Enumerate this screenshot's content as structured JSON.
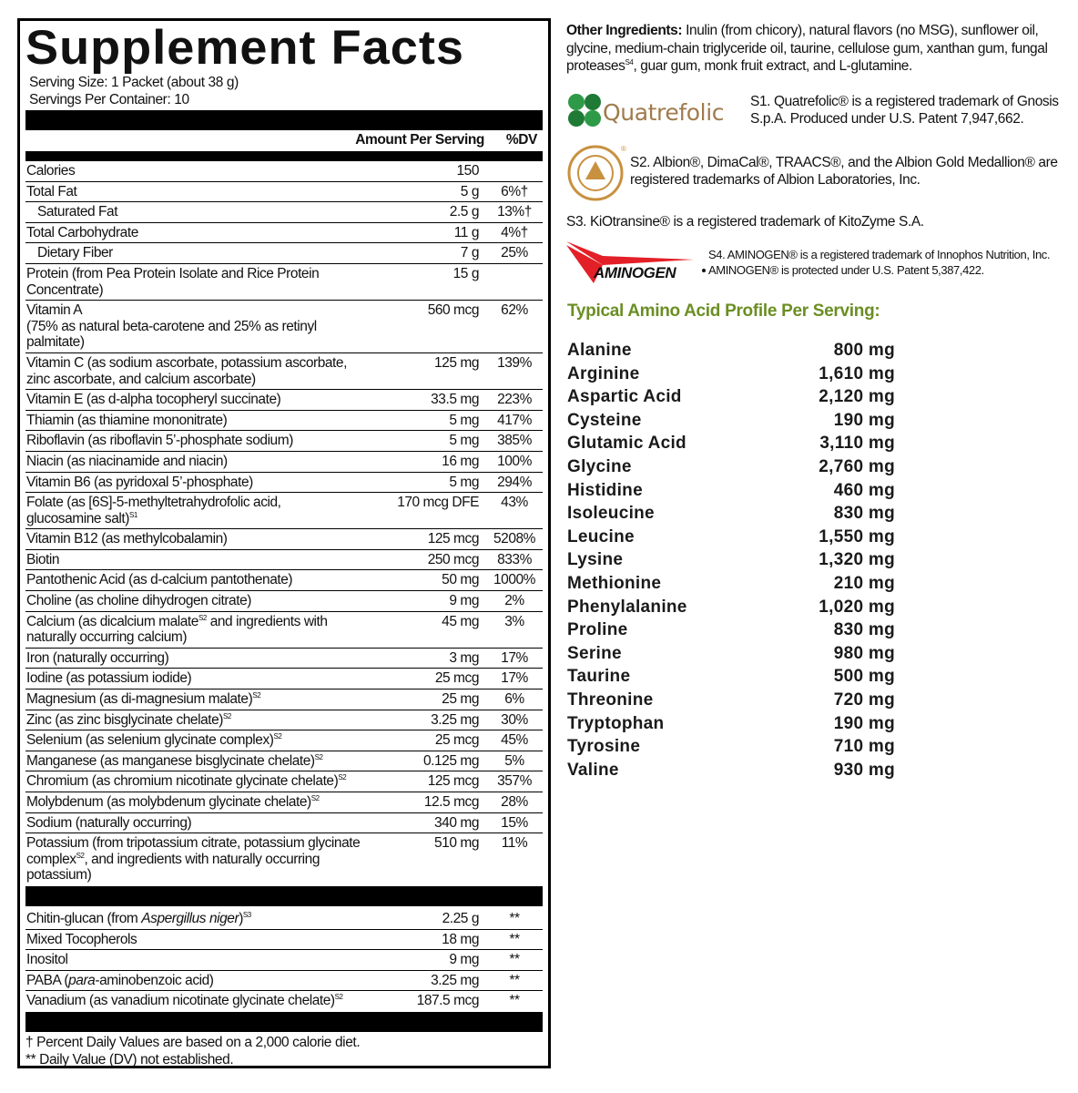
{
  "facts": {
    "title": "Supplement Facts",
    "serving_size": "Serving Size: 1 Packet (about 38 g)",
    "servings_per_container": "Servings Per Container: 10",
    "amount_header": "Amount Per Serving",
    "dv_header": "%DV",
    "rows": [
      {
        "name": [
          {
            "t": "Calories"
          }
        ],
        "amount": "150",
        "dv": ""
      },
      {
        "name": [
          {
            "t": "Total Fat"
          }
        ],
        "amount": "5 g",
        "dv": "6%†"
      },
      {
        "name": [
          {
            "t": "Saturated Fat"
          }
        ],
        "amount": "2.5 g",
        "dv": "13%†",
        "indent": true
      },
      {
        "name": [
          {
            "t": "Total Carbohydrate"
          }
        ],
        "amount": "11 g",
        "dv": "4%†"
      },
      {
        "name": [
          {
            "t": "Dietary Fiber"
          }
        ],
        "amount": "7 g",
        "dv": "25%",
        "indent": true
      },
      {
        "name": [
          {
            "t": "Protein (from Pea Protein Isolate and Rice Protein Concentrate)"
          }
        ],
        "amount": "15 g",
        "dv": ""
      },
      {
        "name": [
          {
            "t": "Vitamin A"
          },
          {
            "br": true
          },
          {
            "t": "(75% as natural beta-carotene and 25% as retinyl palmitate)"
          }
        ],
        "amount": "560 mcg",
        "dv": "62%"
      },
      {
        "name": [
          {
            "t": "Vitamin C (as sodium ascorbate, potassium ascorbate, zinc ascorbate, and calcium ascorbate)"
          }
        ],
        "amount": "125 mg",
        "dv": "139%"
      },
      {
        "name": [
          {
            "t": "Vitamin E (as d-alpha tocopheryl succinate)"
          }
        ],
        "amount": "33.5 mg",
        "dv": "223%"
      },
      {
        "name": [
          {
            "t": "Thiamin (as thiamine mononitrate)"
          }
        ],
        "amount": "5 mg",
        "dv": "417%"
      },
      {
        "name": [
          {
            "t": "Riboflavin (as riboflavin 5’-phosphate sodium)"
          }
        ],
        "amount": "5 mg",
        "dv": "385%"
      },
      {
        "name": [
          {
            "t": "Niacin (as niacinamide and niacin)"
          }
        ],
        "amount": "16 mg",
        "dv": "100%"
      },
      {
        "name": [
          {
            "t": "Vitamin B6 (as pyridoxal 5’-phosphate)"
          }
        ],
        "amount": "5 mg",
        "dv": "294%"
      },
      {
        "name": [
          {
            "t": "Folate (as [6S]-5-methyltetrahydrofolic acid,"
          },
          {
            "br": true
          },
          {
            "t": "glucosamine salt)"
          },
          {
            "sup": "S1"
          }
        ],
        "amount": "170 mcg DFE",
        "dv": "43%"
      },
      {
        "name": [
          {
            "t": "Vitamin B12 (as methylcobalamin)"
          }
        ],
        "amount": "125 mcg",
        "dv": "5208%"
      },
      {
        "name": [
          {
            "t": "Biotin"
          }
        ],
        "amount": "250 mcg",
        "dv": "833%"
      },
      {
        "name": [
          {
            "t": "Pantothenic Acid (as d-calcium pantothenate)"
          }
        ],
        "amount": "50 mg",
        "dv": "1000%"
      },
      {
        "name": [
          {
            "t": "Choline (as choline dihydrogen citrate)"
          }
        ],
        "amount": "9 mg",
        "dv": "2%"
      },
      {
        "name": [
          {
            "t": "Calcium (as dicalcium malate"
          },
          {
            "sup": "S2"
          },
          {
            "t": " and ingredients with naturally occurring calcium)"
          }
        ],
        "amount": "45 mg",
        "dv": "3%"
      },
      {
        "name": [
          {
            "t": "Iron (naturally occurring)"
          }
        ],
        "amount": "3 mg",
        "dv": "17%"
      },
      {
        "name": [
          {
            "t": "Iodine (as potassium iodide)"
          }
        ],
        "amount": "25 mcg",
        "dv": "17%"
      },
      {
        "name": [
          {
            "t": "Magnesium (as di-magnesium malate)"
          },
          {
            "sup": "S2"
          }
        ],
        "amount": "25 mg",
        "dv": "6%"
      },
      {
        "name": [
          {
            "t": "Zinc (as zinc bisglycinate chelate)"
          },
          {
            "sup": "S2"
          }
        ],
        "amount": "3.25 mg",
        "dv": "30%"
      },
      {
        "name": [
          {
            "t": "Selenium (as selenium glycinate complex)"
          },
          {
            "sup": "S2"
          }
        ],
        "amount": "25 mcg",
        "dv": "45%"
      },
      {
        "name": [
          {
            "t": "Manganese (as manganese bisglycinate chelate)"
          },
          {
            "sup": "S2"
          }
        ],
        "amount": "0.125 mg",
        "dv": "5%"
      },
      {
        "name": [
          {
            "t": "Chromium (as chromium nicotinate glycinate chelate)"
          },
          {
            "sup": "S2"
          }
        ],
        "amount": "125 mcg",
        "dv": "357%"
      },
      {
        "name": [
          {
            "t": "Molybdenum (as molybdenum glycinate chelate)"
          },
          {
            "sup": "S2"
          }
        ],
        "amount": "12.5 mcg",
        "dv": "28%"
      },
      {
        "name": [
          {
            "t": "Sodium (naturally occurring)"
          }
        ],
        "amount": "340 mg",
        "dv": "15%"
      },
      {
        "name": [
          {
            "t": "Potassium (from tripotassium citrate, potassium glycinate complex"
          },
          {
            "sup": "S2"
          },
          {
            "t": ", and ingredients with naturally occurring potassium)"
          }
        ],
        "amount": "510 mg",
        "dv": "11%"
      }
    ],
    "other_rows": [
      {
        "name": [
          {
            "t": "Chitin-glucan (from "
          },
          {
            "t": "Aspergillus niger",
            "i": true
          },
          {
            "t": ")"
          },
          {
            "sup": "S3"
          }
        ],
        "amount": "2.25 g",
        "dv": "**"
      },
      {
        "name": [
          {
            "t": "Mixed Tocopherols"
          }
        ],
        "amount": "18 mg",
        "dv": "**"
      },
      {
        "name": [
          {
            "t": "Inositol"
          }
        ],
        "amount": "9 mg",
        "dv": "**"
      },
      {
        "name": [
          {
            "t": "PABA ("
          },
          {
            "t": "para",
            "i": true
          },
          {
            "t": "-aminobenzoic acid)"
          }
        ],
        "amount": "3.25 mg",
        "dv": "**"
      },
      {
        "name": [
          {
            "t": "Vanadium (as vanadium nicotinate glycinate chelate)"
          },
          {
            "sup": "S2"
          }
        ],
        "amount": "187.5 mcg",
        "dv": "**"
      }
    ],
    "footnote_1": "† Percent Daily Values are based on a 2,000 calorie diet.",
    "footnote_2": "** Daily Value (DV) not established."
  },
  "other_ingredients": {
    "label": "Other Ingredients:",
    "text_1": " Inulin (from chicory), natural flavors (no MSG), sunflower oil, glycine, medium-chain triglyceride oil, taurine, cellulose gum, xanthan gum, fungal proteases",
    "sup": "S4",
    "text_2": ", guar gum, monk fruit extract, and L-glutamine."
  },
  "trademarks": {
    "s1": "S1. Quatrefolic® is a registered trademark of Gnosis S.p.A. Produced under U.S. Patent 7,947,662.",
    "s2": "S2. Albion®, DimaCal®, TRAACS®, and the Albion Gold Medallion® are registered trademarks of Albion Laboratories, Inc.",
    "s3": "S3. KiOtransine® is a registered trademark of KitoZyme S.A.",
    "s4": "S4. AMINOGEN® is a registered trademark of Innophos Nutrition, Inc. AMINOGEN® is protected under U.S. Patent 5,387,422.",
    "logo_quatrefolic": "Quatrefolic",
    "logo_albion": "ALBION MINERALS",
    "logo_aminogen": "AMINOGEN"
  },
  "amino": {
    "heading": "Typical Amino Acid Profile Per Serving:",
    "color": "#6b8e23",
    "rows": [
      {
        "name": "Alanine",
        "value": "800 mg"
      },
      {
        "name": "Arginine",
        "value": "1,610 mg"
      },
      {
        "name": "Aspartic Acid",
        "value": "2,120 mg"
      },
      {
        "name": "Cysteine",
        "value": "190 mg"
      },
      {
        "name": "Glutamic Acid",
        "value": "3,110 mg"
      },
      {
        "name": "Glycine",
        "value": "2,760 mg"
      },
      {
        "name": "Histidine",
        "value": "460 mg"
      },
      {
        "name": "Isoleucine",
        "value": "830 mg"
      },
      {
        "name": "Leucine",
        "value": "1,550 mg"
      },
      {
        "name": "Lysine",
        "value": "1,320 mg"
      },
      {
        "name": "Methionine",
        "value": "210 mg"
      },
      {
        "name": "Phenylalanine",
        "value": "1,020 mg"
      },
      {
        "name": "Proline",
        "value": "830 mg"
      },
      {
        "name": "Serine",
        "value": "980 mg"
      },
      {
        "name": "Taurine",
        "value": "500 mg"
      },
      {
        "name": "Threonine",
        "value": "720 mg"
      },
      {
        "name": "Tryptophan",
        "value": "190 mg"
      },
      {
        "name": "Tyrosine",
        "value": "710 mg"
      },
      {
        "name": "Valine",
        "value": "930 mg"
      }
    ]
  }
}
